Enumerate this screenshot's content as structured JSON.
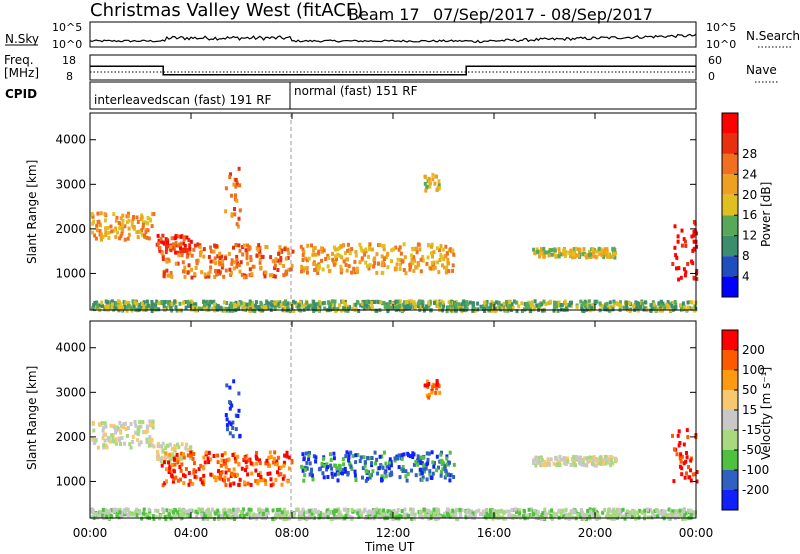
{
  "title": {
    "station": "Christmas Valley West (fitACF)",
    "beam": "Beam 17",
    "dates": "07/Sep/2017 - 08/Sep/2017"
  },
  "labels": {
    "nsky": "N.Sky",
    "nsearch": "N.Search",
    "freq": "Freq.",
    "mhz": "[MHz]",
    "nave": "Nave",
    "cpid": "CPID",
    "scan1": "interleavedscan (fast) 191 RF",
    "scan2": "normal (fast) 151 RF",
    "xlabel": "Time UT",
    "ylabel": "Slant Range [km]",
    "power_label": "Power [dB]",
    "velocity_label": "Velocity [m s⁻¹]"
  },
  "colors": {
    "power": [
      "#0000ff",
      "#1f4fbf",
      "#3c8c6e",
      "#58a85a",
      "#e0c020",
      "#f0a020",
      "#f07020",
      "#e83010",
      "#ff0000"
    ],
    "velocity": [
      "#ff0000",
      "#ff5a00",
      "#ff9a10",
      "#f8c870",
      "#c8c8c8",
      "#a8d880",
      "#50c040",
      "#3060c0",
      "#1020ff"
    ]
  },
  "chart_data": [
    {
      "type": "line",
      "panel": "noise",
      "left_ticks": [
        "10^5",
        "10^0"
      ],
      "right_ticks": [
        "10^5",
        "10^0"
      ],
      "series_left": "N.Sky",
      "series_right": "N.Search"
    },
    {
      "type": "line",
      "panel": "frequency",
      "left_ticks": [
        "18",
        "8"
      ],
      "right_ticks": [
        "60",
        "0"
      ],
      "series": [
        {
          "name": "Freq.",
          "x": [
            0,
            2.9,
            2.9,
            14.9,
            14.9,
            24
          ],
          "y": [
            13.5,
            13.5,
            10.1,
            10.1,
            13.5,
            13.5
          ]
        }
      ]
    },
    {
      "type": "heatmap",
      "panel": "power",
      "xlabel": "Time UT",
      "ylabel": "Slant Range [km]",
      "x_ticks": [
        "00:00",
        "04:00",
        "08:00",
        "12:00",
        "16:00",
        "20:00",
        "00:00"
      ],
      "xlim": [
        0,
        24
      ],
      "y_ticks": [
        1000,
        2000,
        3000,
        4000
      ],
      "ylim": [
        180,
        4600
      ],
      "colorbar_label": "Power [dB]",
      "colorbar_ticks": [
        4,
        8,
        12,
        16,
        20,
        24,
        28
      ]
    },
    {
      "type": "heatmap",
      "panel": "velocity",
      "xlabel": "Time UT",
      "ylabel": "Slant Range [km]",
      "x_ticks": [
        "00:00",
        "04:00",
        "08:00",
        "12:00",
        "16:00",
        "20:00",
        "00:00"
      ],
      "xlim": [
        0,
        24
      ],
      "y_ticks": [
        1000,
        2000,
        3000,
        4000
      ],
      "ylim": [
        180,
        4600
      ],
      "colorbar_label": "Velocity [m s⁻¹]",
      "colorbar_ticks": [
        200,
        100,
        50,
        15,
        -15,
        -50,
        -100,
        -200
      ]
    }
  ],
  "echo_regions": [
    {
      "t0": 0.0,
      "t1": 2.5,
      "r0": 1800,
      "r1": 2400,
      "pow": 5,
      "vel": 4
    },
    {
      "t0": 2.6,
      "t1": 4.0,
      "r0": 1500,
      "r1": 1900,
      "pow": 7,
      "vel": 4
    },
    {
      "t0": 2.8,
      "t1": 8.0,
      "r0": 950,
      "r1": 1700,
      "pow": 6,
      "vel": 1
    },
    {
      "t0": 5.3,
      "t1": 5.9,
      "r0": 2000,
      "r1": 3400,
      "pow": 6,
      "vel": 8
    },
    {
      "t0": 8.3,
      "t1": 14.4,
      "r0": 1050,
      "r1": 1700,
      "pow": 5,
      "vel": 7
    },
    {
      "t0": 13.2,
      "t1": 13.8,
      "r0": 2900,
      "r1": 3300,
      "pow": 4,
      "vel": 1
    },
    {
      "t0": 17.5,
      "t1": 20.8,
      "r0": 1400,
      "r1": 1600,
      "pow": 4,
      "vel": 4
    },
    {
      "t0": 23.0,
      "t1": 24.0,
      "r0": 900,
      "r1": 2200,
      "pow": 8,
      "vel": 0
    },
    {
      "t0": 0.0,
      "t1": 24.0,
      "r0": 200,
      "r1": 420,
      "pow": 3,
      "vel": 5
    }
  ]
}
